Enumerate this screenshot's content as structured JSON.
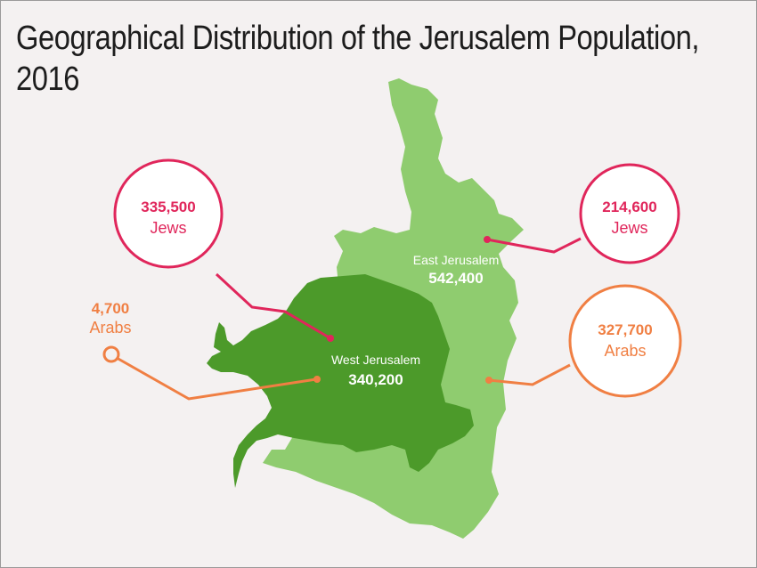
{
  "title": {
    "line1": "Geographical Distribution of the Jerusalem Population,",
    "line2": "2016"
  },
  "regions": {
    "east": {
      "name": "East Jerusalem",
      "population": "542,400"
    },
    "west": {
      "name": "West Jerusalem",
      "population": "340,200"
    }
  },
  "callouts": {
    "west_jews": {
      "value": "335,500",
      "label": "Jews"
    },
    "west_arabs": {
      "value": "4,700",
      "label": "Arabs"
    },
    "east_jews": {
      "value": "214,600",
      "label": "Jews"
    },
    "east_arabs": {
      "value": "327,700",
      "label": "Arabs"
    }
  },
  "colors": {
    "background": "#f4f1f1",
    "east_region": "#8fcc6f",
    "west_region": "#4c9a2a",
    "jews_accent": "#e0265b",
    "arabs_accent": "#f07f43",
    "title_text": "#1d1d1d",
    "region_label": "#ffffff"
  }
}
